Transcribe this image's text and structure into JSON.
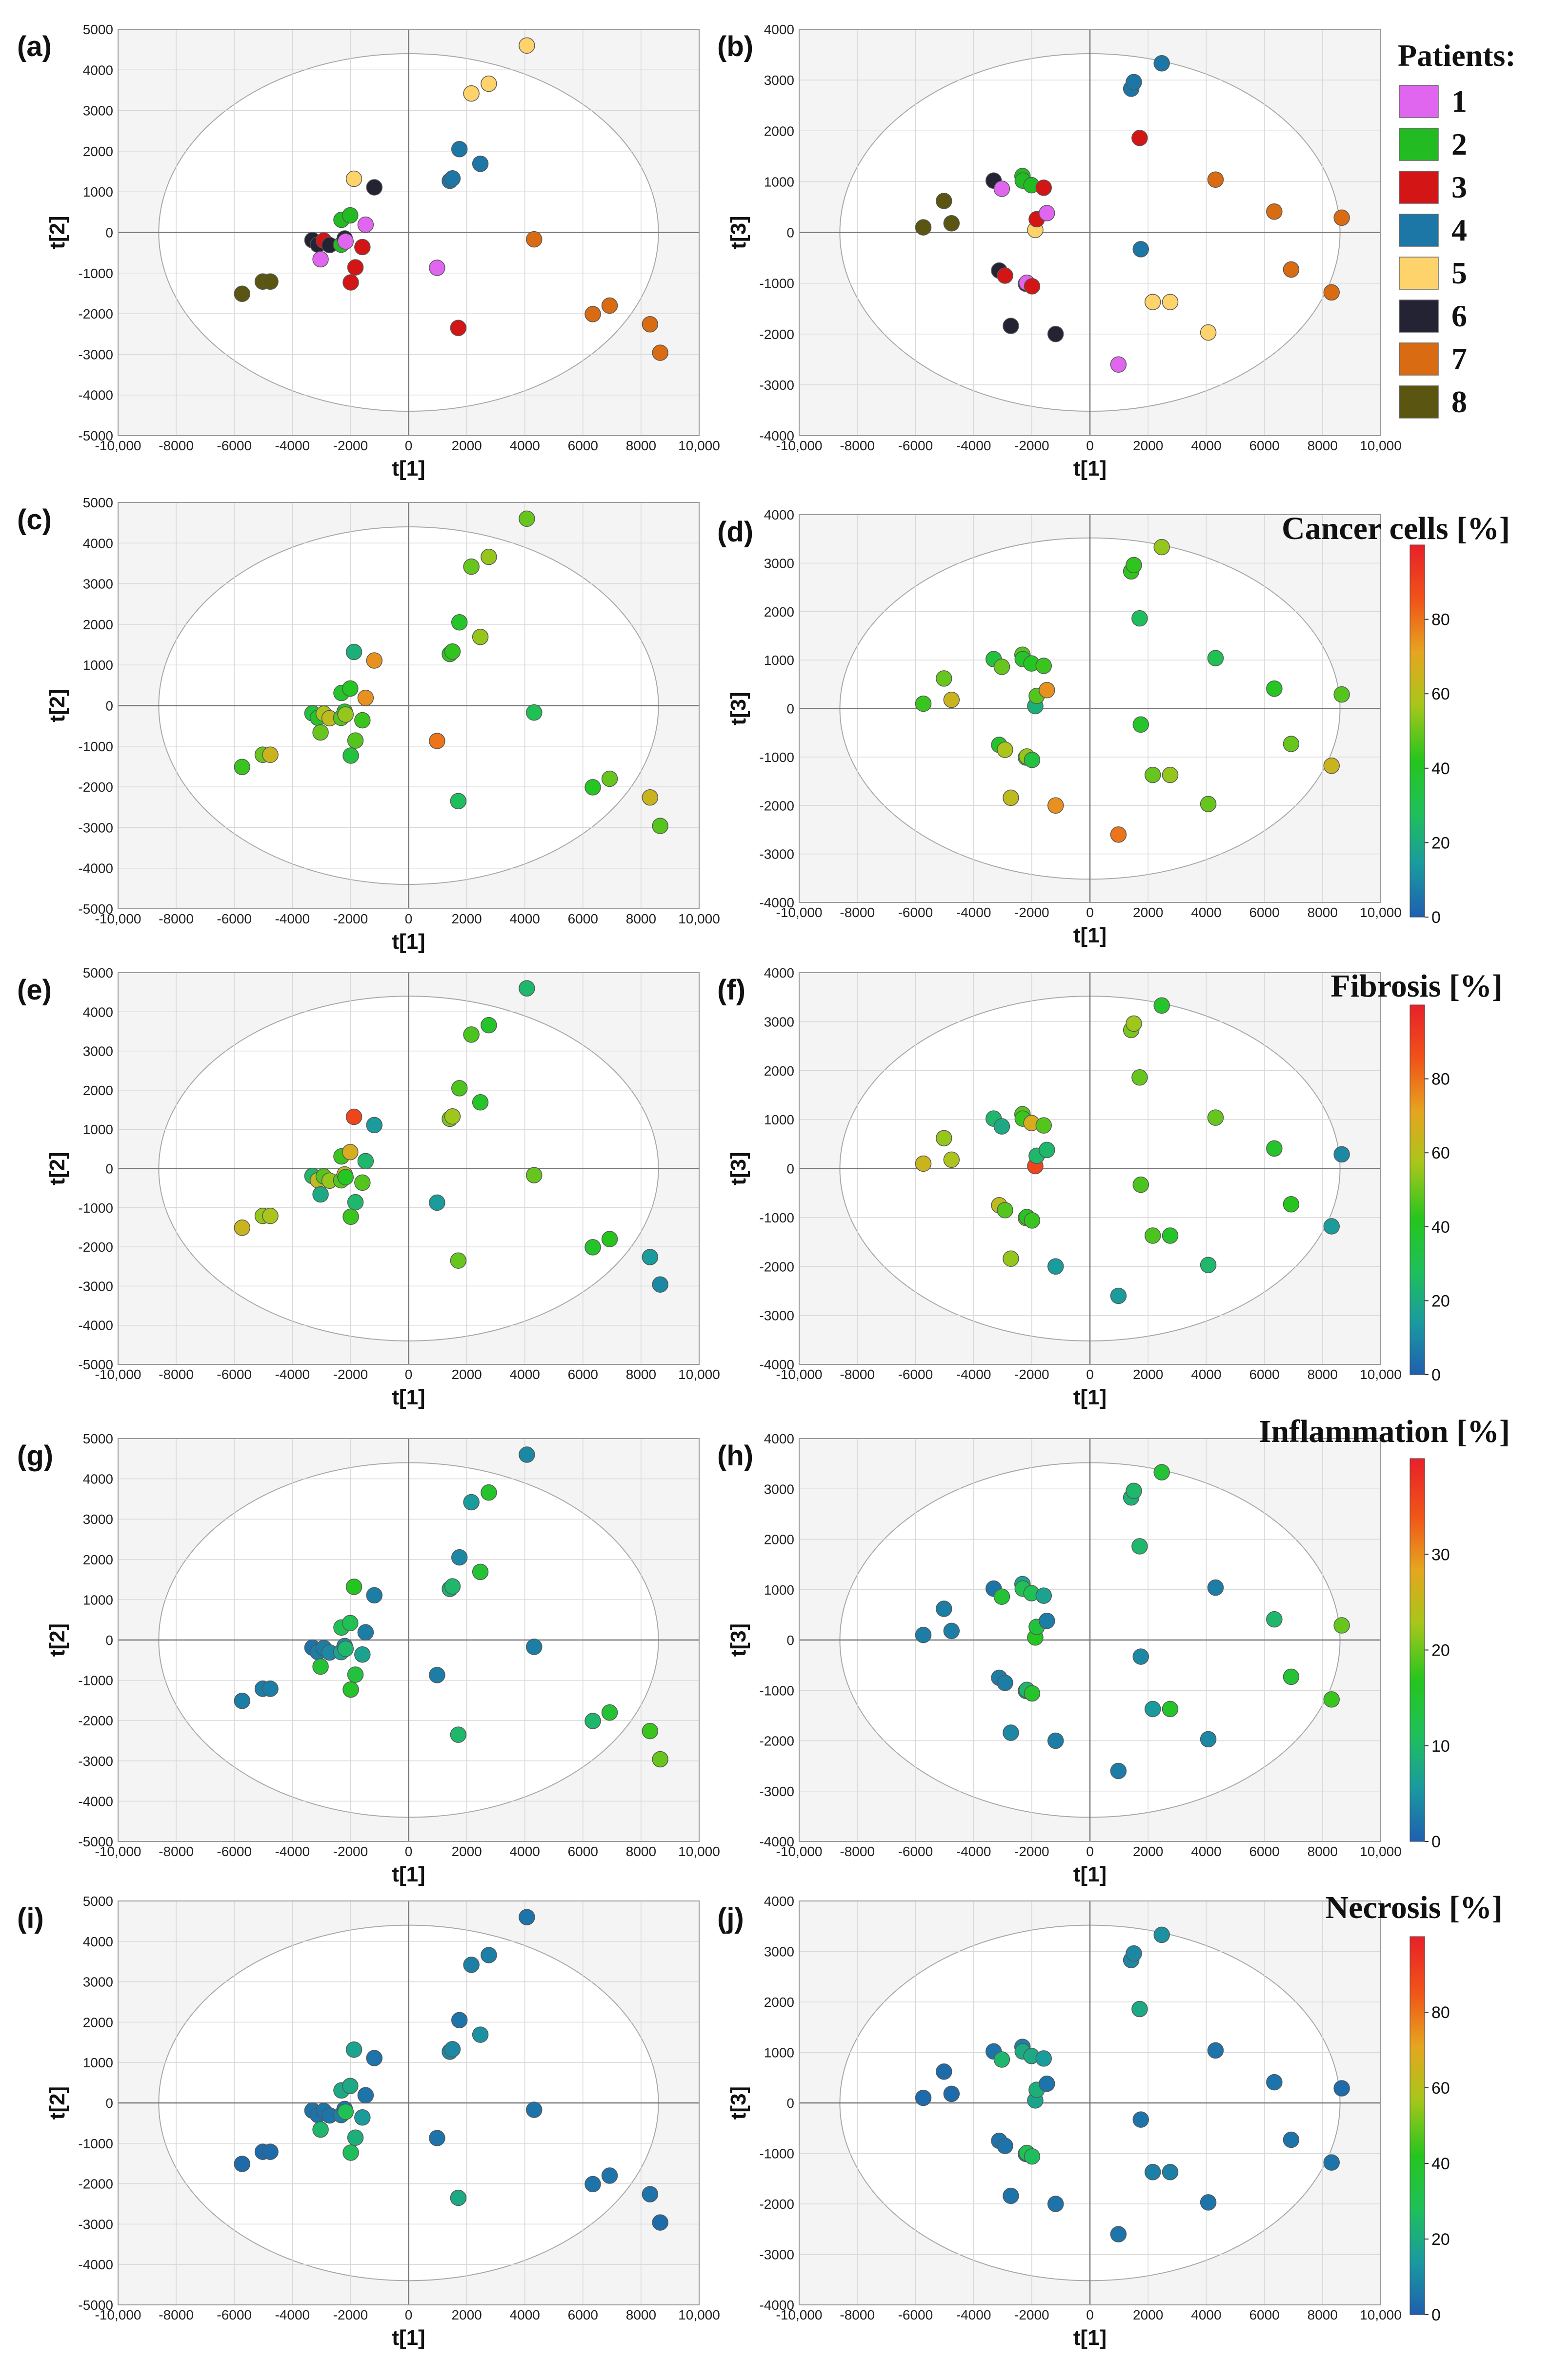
{
  "points": {
    "t1": [
      -5730,
      -5020,
      -4760,
      -3310,
      -3120,
      -3030,
      -2920,
      -2720,
      -2320,
      -2310,
      -2200,
      -2170,
      -2010,
      -1990,
      -1880,
      -1830,
      -1590,
      -1480,
      -1180,
      980,
      1420,
      1510,
      1710,
      1750,
      2160,
      2470,
      2760,
      4070,
      4320,
      6340,
      6920,
      8310,
      8660
    ],
    "t2": [
      -1510,
      -1210,
      -1210,
      -190,
      -300,
      -660,
      -200,
      -310,
      -300,
      310,
      -150,
      -220,
      420,
      -1230,
      1320,
      -860,
      -360,
      190,
      1110,
      -870,
      1270,
      1330,
      -2350,
      2050,
      3420,
      1690,
      3660,
      4600,
      -170,
      -2010,
      -1800,
      -2260,
      -2960
    ],
    "t3": [
      100,
      620,
      180,
      1020,
      -750,
      860,
      -850,
      -1840,
      1110,
      1020,
      -1010,
      -990,
      930,
      -1060,
      50,
      260,
      880,
      380,
      -2000,
      -2600,
      2830,
      2960,
      1860,
      -330,
      -1370,
      3330,
      -1370,
      -1970,
      1040,
      410,
      -730,
      -1180,
      290
    ],
    "patient": [
      8,
      8,
      8,
      6,
      6,
      1,
      3,
      6,
      2,
      2,
      6,
      1,
      2,
      3,
      5,
      3,
      3,
      1,
      6,
      1,
      4,
      4,
      3,
      4,
      5,
      4,
      5,
      5,
      7,
      7,
      7,
      7,
      7
    ],
    "cancer_cells": [
      45,
      50,
      65,
      35,
      40,
      50,
      58,
      62,
      48,
      40,
      40,
      55,
      42,
      35,
      22,
      48,
      45,
      75,
      75,
      80,
      44,
      44,
      28,
      40,
      50,
      55,
      55,
      50,
      30,
      42,
      50,
      65,
      48
    ],
    "fibrosis": [
      65,
      55,
      58,
      25,
      62,
      20,
      48,
      55,
      48,
      45,
      62,
      42,
      68,
      45,
      90,
      25,
      48,
      25,
      15,
      15,
      52,
      56,
      50,
      47,
      47,
      40,
      40,
      25,
      50,
      40,
      43,
      15,
      10
    ],
    "inflammation": [
      3,
      3,
      3,
      2,
      3,
      15,
      3,
      4,
      7,
      12,
      4,
      10,
      12,
      16,
      17,
      14,
      7,
      3,
      3,
      3,
      9,
      10,
      10,
      4,
      6,
      15,
      16,
      4,
      3,
      10,
      15,
      18,
      20
    ],
    "necrosis": [
      3,
      3,
      3,
      5,
      5,
      25,
      5,
      5,
      8,
      20,
      5,
      30,
      20,
      28,
      18,
      22,
      15,
      5,
      5,
      5,
      10,
      10,
      20,
      5,
      8,
      12,
      8,
      5,
      5,
      5,
      5,
      5,
      3
    ]
  },
  "axes": {
    "xlabel": "t[1]",
    "ylabel_left": "t[2]",
    "ylabel_right": "t[3]",
    "xticks": [
      -10000,
      -8000,
      -6000,
      -4000,
      -2000,
      0,
      2000,
      4000,
      6000,
      8000,
      10000
    ],
    "xtick_labels": [
      "-10,000",
      "-8000",
      "-6000",
      "-4000",
      "-2000",
      "0",
      "2000",
      "4000",
      "6000",
      "8000",
      "10,000"
    ],
    "left_ylim": [
      -5000,
      5000
    ],
    "left_yticks": [
      -5000,
      -4000,
      -3000,
      -2000,
      -1000,
      0,
      1000,
      2000,
      3000,
      4000,
      5000
    ],
    "left_ytick_labels": [
      "-5000",
      "-4000",
      "-3000",
      "-2000",
      "-1000",
      "0",
      "1000",
      "2000",
      "3000",
      "4000",
      "5000"
    ],
    "right_ylim": [
      -4000,
      4000
    ],
    "right_yticks": [
      -4000,
      -3000,
      -2000,
      -1000,
      0,
      1000,
      2000,
      3000,
      4000
    ],
    "right_ytick_labels": [
      "-4000",
      "-3000",
      "-2000",
      "-1000",
      "0",
      "1000",
      "2000",
      "3000",
      "4000"
    ]
  },
  "chart_data": [
    {
      "id": "a",
      "label": "(a)",
      "type": "scatter",
      "x": "t1",
      "y": "t2",
      "color_by": "patient",
      "xlabel": "t[1]",
      "ylabel": "t[2]",
      "xlim": [
        -10000,
        10000
      ],
      "ylim": [
        -5000,
        5000
      ]
    },
    {
      "id": "b",
      "label": "(b)",
      "type": "scatter",
      "x": "t1",
      "y": "t3",
      "color_by": "patient",
      "xlabel": "t[1]",
      "ylabel": "t[3]",
      "xlim": [
        -10000,
        10000
      ],
      "ylim": [
        -4000,
        4000
      ]
    },
    {
      "id": "c",
      "label": "(c)",
      "type": "scatter",
      "x": "t1",
      "y": "t2",
      "color_by": "cancer_cells",
      "xlabel": "t[1]",
      "ylabel": "t[2]",
      "xlim": [
        -10000,
        10000
      ],
      "ylim": [
        -5000,
        5000
      ]
    },
    {
      "id": "d",
      "label": "(d)",
      "type": "scatter",
      "x": "t1",
      "y": "t3",
      "color_by": "cancer_cells",
      "xlabel": "t[1]",
      "ylabel": "t[3]",
      "xlim": [
        -10000,
        10000
      ],
      "ylim": [
        -4000,
        4000
      ]
    },
    {
      "id": "e",
      "label": "(e)",
      "type": "scatter",
      "x": "t1",
      "y": "t2",
      "color_by": "fibrosis",
      "xlabel": "t[1]",
      "ylabel": "t[2]",
      "xlim": [
        -10000,
        10000
      ],
      "ylim": [
        -5000,
        5000
      ]
    },
    {
      "id": "f",
      "label": "(f)",
      "type": "scatter",
      "x": "t1",
      "y": "t3",
      "color_by": "fibrosis",
      "xlabel": "t[1]",
      "ylabel": "t[3]",
      "xlim": [
        -10000,
        10000
      ],
      "ylim": [
        -4000,
        4000
      ]
    },
    {
      "id": "g",
      "label": "(g)",
      "type": "scatter",
      "x": "t1",
      "y": "t2",
      "color_by": "inflammation",
      "xlabel": "t[1]",
      "ylabel": "t[2]",
      "xlim": [
        -10000,
        10000
      ],
      "ylim": [
        -5000,
        5000
      ]
    },
    {
      "id": "h",
      "label": "(h)",
      "type": "scatter",
      "x": "t1",
      "y": "t3",
      "color_by": "inflammation",
      "xlabel": "t[1]",
      "ylabel": "t[3]",
      "xlim": [
        -10000,
        10000
      ],
      "ylim": [
        -4000,
        4000
      ]
    },
    {
      "id": "i",
      "label": "(i)",
      "type": "scatter",
      "x": "t1",
      "y": "t2",
      "color_by": "necrosis",
      "xlabel": "t[1]",
      "ylabel": "t[2]",
      "xlim": [
        -10000,
        10000
      ],
      "ylim": [
        -5000,
        5000
      ]
    },
    {
      "id": "j",
      "label": "(j)",
      "type": "scatter",
      "x": "t1",
      "y": "t3",
      "color_by": "necrosis",
      "xlabel": "t[1]",
      "ylabel": "t[3]",
      "xlim": [
        -10000,
        10000
      ],
      "ylim": [
        -4000,
        4000
      ]
    }
  ],
  "patients_legend": {
    "title": "Patients:",
    "entries": [
      {
        "label": "1",
        "color": "#e066f0"
      },
      {
        "label": "2",
        "color": "#22bb22"
      },
      {
        "label": "3",
        "color": "#d41515"
      },
      {
        "label": "4",
        "color": "#1c76a6"
      },
      {
        "label": "5",
        "color": "#ffd36b"
      },
      {
        "label": "6",
        "color": "#232334"
      },
      {
        "label": "7",
        "color": "#d96b12"
      },
      {
        "label": "8",
        "color": "#5a5612"
      }
    ]
  },
  "colorbars": [
    {
      "var": "cancer_cells",
      "title": "Cancer cells [%]",
      "max": 100,
      "ticks": [
        0,
        20,
        40,
        60,
        80
      ],
      "tick_labels": [
        "0",
        "20",
        "40",
        "60",
        "80"
      ]
    },
    {
      "var": "fibrosis",
      "title": "Fibrosis [%]",
      "max": 100,
      "ticks": [
        0,
        20,
        40,
        60,
        80
      ],
      "tick_labels": [
        "0",
        "20",
        "40",
        "60",
        "80"
      ]
    },
    {
      "var": "inflammation",
      "title": "Inflammation [%]",
      "max": 40,
      "ticks": [
        0,
        10,
        20,
        30
      ],
      "tick_labels": [
        "0",
        "10",
        "20",
        "30"
      ]
    },
    {
      "var": "necrosis",
      "title": "Necrosis [%]",
      "max": 100,
      "ticks": [
        0,
        20,
        40,
        60,
        80
      ],
      "tick_labels": [
        "0",
        "20",
        "40",
        "60",
        "80"
      ]
    }
  ],
  "colormap": [
    "#1f5fb0",
    "#1a9a9f",
    "#1fc05a",
    "#25c51e",
    "#a8c61b",
    "#e6a520",
    "#f05518",
    "#e8202a"
  ]
}
